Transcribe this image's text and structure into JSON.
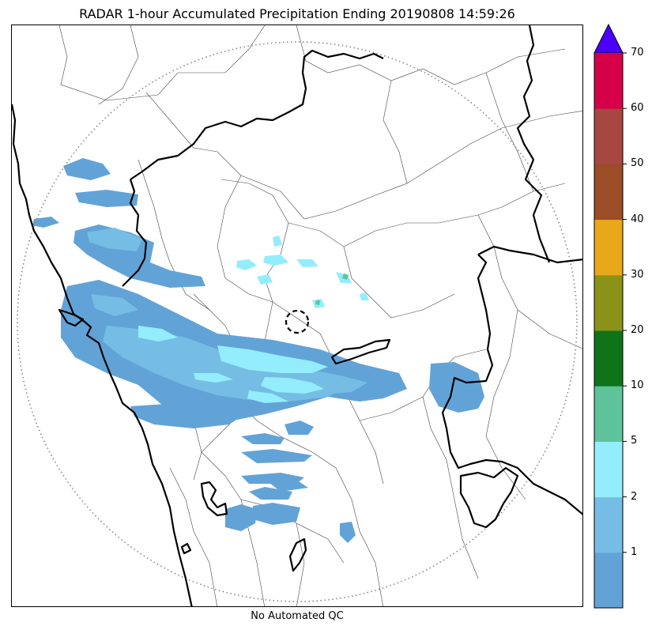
{
  "figure": {
    "title": "RADAR 1-hour Accumulated Precipitation Ending 20190808 14:59:26",
    "footer": "No Automated QC"
  },
  "colorbar": {
    "levels": [
      "1",
      "2",
      "5",
      "10",
      "20",
      "30",
      "40",
      "50",
      "60",
      "70"
    ],
    "colors": [
      "#62a3d7",
      "#75bde4",
      "#93edfc",
      "#5ec39b",
      "#0f7319",
      "#8a9317",
      "#e8a81b",
      "#9a4d26",
      "#a64841",
      "#d50048"
    ],
    "over_color": "#4b00fe",
    "extend": "max"
  },
  "map": {
    "range_ring": "dotted",
    "radar_site_marker": "dashed-circle",
    "state_boundaries": "bold",
    "district_boundaries": "thin",
    "precip_colors": {
      "light": "#62a3d7",
      "medium": "#75bde4",
      "heavy": "#93edfc",
      "heavier": "#5ec39b"
    }
  }
}
